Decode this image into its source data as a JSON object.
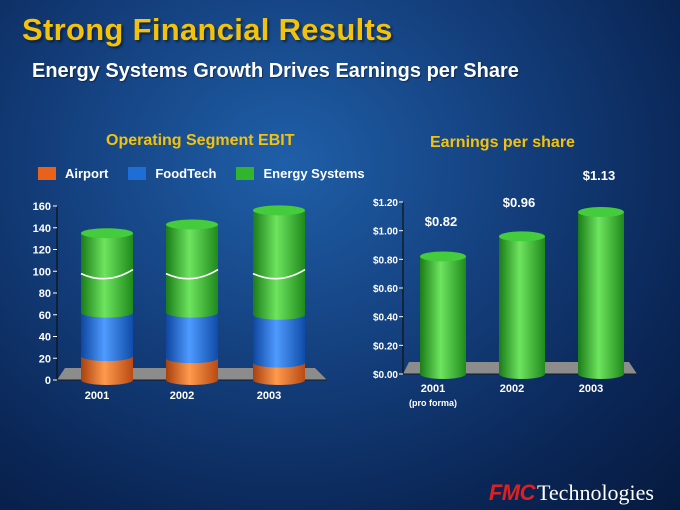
{
  "slide": {
    "title": "Strong Financial Results",
    "subtitle": "Energy Systems Growth Drives Earnings per Share",
    "logo": {
      "brand": "FMC",
      "text": "Technologies"
    }
  },
  "colors": {
    "airport": "#e8621a",
    "foodtech": "#1e6ed6",
    "energy": "#31b52d",
    "title": "#f3c20a"
  },
  "chart_data": [
    {
      "type": "bar",
      "stacked": true,
      "title": "Operating Segment EBIT",
      "categories": [
        "2001",
        "2002",
        "2003"
      ],
      "series": [
        {
          "name": "Airport",
          "values": [
            22,
            20,
            16
          ]
        },
        {
          "name": "FoodTech",
          "values": [
            40,
            42,
            44
          ]
        },
        {
          "name": "Energy Systems",
          "values": [
            73,
            81,
            96
          ]
        }
      ],
      "yticks": [
        "0",
        "20",
        "40",
        "60",
        "80",
        "100",
        "120",
        "140",
        "160"
      ],
      "ylim": [
        0,
        160
      ],
      "axis_break": true,
      "xlabel": "",
      "ylabel": "",
      "legend": "top"
    },
    {
      "type": "bar",
      "title": "Earnings per share",
      "categories": [
        "2001",
        "2002",
        "2003"
      ],
      "category_notes": [
        "(pro forma)",
        "",
        ""
      ],
      "values": [
        0.82,
        0.96,
        1.13
      ],
      "data_labels": [
        "$0.82",
        "$0.96",
        "$1.13"
      ],
      "yticks": [
        "$0.00",
        "$0.20",
        "$0.40",
        "$0.60",
        "$0.80",
        "$1.00",
        "$1.20"
      ],
      "ylim": [
        0,
        1.2
      ],
      "xlabel": "",
      "ylabel": ""
    }
  ]
}
